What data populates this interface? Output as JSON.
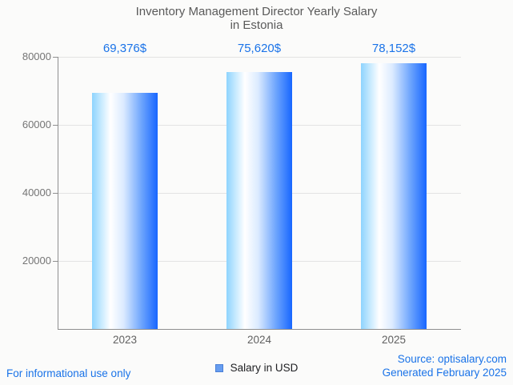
{
  "title": {
    "line1": "Inventory Management Director Yearly Salary",
    "line2": "in Estonia"
  },
  "chart_data": {
    "type": "bar",
    "categories": [
      "2023",
      "2024",
      "2025"
    ],
    "values": [
      69376,
      75620,
      78152
    ],
    "value_labels": [
      "69,376$",
      "75,620$",
      "78,152$"
    ],
    "title": "Inventory Management Director Yearly Salary in Estonia",
    "xlabel": "",
    "ylabel": "",
    "ylim": [
      0,
      80000
    ],
    "y_ticks": [
      20000,
      40000,
      60000,
      80000
    ],
    "y_tick_labels": [
      "20000",
      "40000",
      "60000",
      "80000"
    ],
    "grid": true,
    "legend": {
      "label": "Salary in USD",
      "position": "bottom"
    }
  },
  "footer": {
    "left": "For informational use only",
    "source": "Source: optisalary.com",
    "generated": "Generated February 2025"
  },
  "colors": {
    "accent_blue": "#1a73e8",
    "title_text": "#5a5a5a",
    "ytick_text": "#757575",
    "xlabel_text": "#616161",
    "grid": "#e3e3e3",
    "axis": "#8f8f8f",
    "background": "#fbfbfa",
    "bar_gradient": [
      "#8ed4fe",
      "#ffffff",
      "#dcebff",
      "#6fa6fd",
      "#1766ff"
    ],
    "legend_square_fill": "#669df0",
    "legend_square_border": "#4a7fd6"
  }
}
